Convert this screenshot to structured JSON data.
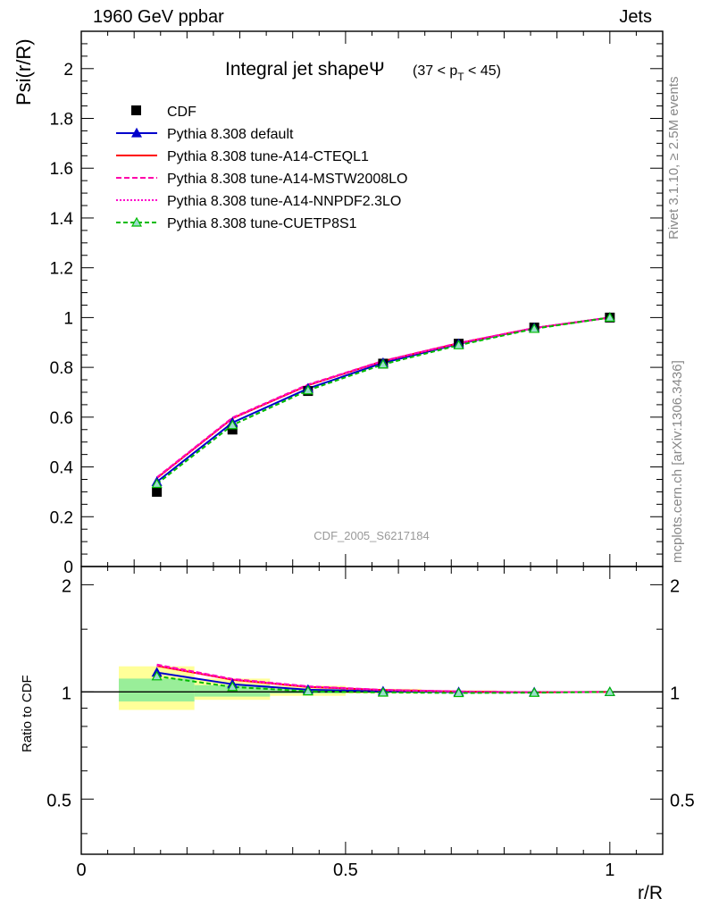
{
  "header": {
    "left": "1960 GeV ppbar",
    "right": "Jets"
  },
  "side": {
    "rivet": "Rivet 3.1.10, ≥ 2.5M events",
    "mcplots": "mcplots.cern.ch [arXiv:1306.3436]"
  },
  "chart_data": {
    "type": "line",
    "title": "Integral jet shapeΨ",
    "title_sub": "(37 < p",
    "title_sub_index": "T",
    "title_sub_tail": " < 45)",
    "analysis_id": "CDF_2005_S6217184",
    "xlabel": "r/R",
    "ylabel": "Psi(r/R)",
    "ratio_ylabel": "Ratio to CDF",
    "xlim": [
      0,
      1.1
    ],
    "ylim": [
      0,
      2.15
    ],
    "ratio_ylim": [
      0.35,
      2.25
    ],
    "ratio_log": true,
    "x_ticks": [
      "0",
      "0.5",
      "1"
    ],
    "x_tick_values": [
      0,
      0.5,
      1
    ],
    "y_ticks": [
      "0",
      "0.2",
      "0.4",
      "0.6",
      "0.8",
      "1",
      "1.2",
      "1.4",
      "1.6",
      "1.8",
      "2"
    ],
    "y_tick_values": [
      0,
      0.2,
      0.4,
      0.6,
      0.8,
      1.0,
      1.2,
      1.4,
      1.6,
      1.8,
      2.0
    ],
    "ratio_ticks": [
      "0.5",
      "1",
      "2"
    ],
    "ratio_tick_values": [
      0.5,
      1,
      2
    ],
    "legend_position": "top-left",
    "x": [
      0.143,
      0.286,
      0.429,
      0.571,
      0.714,
      0.857,
      1.0
    ],
    "bin_edges": [
      0.071,
      0.214,
      0.357,
      0.5,
      0.643,
      0.786,
      0.929,
      1.071
    ],
    "data": {
      "name": "CDF",
      "values": [
        0.3,
        0.55,
        0.705,
        0.815,
        0.895,
        0.96,
        1.0
      ],
      "stat_band": [
        [
          0.94,
          1.09
        ],
        [
          0.97,
          1.045
        ],
        [
          0.99,
          1.02
        ],
        [
          0.995,
          1.01
        ],
        [
          0.998,
          1.005
        ],
        [
          0.999,
          1.003
        ],
        [
          1.0,
          1.0
        ]
      ],
      "tot_band": [
        [
          0.89,
          1.18
        ],
        [
          0.95,
          1.09
        ],
        [
          0.975,
          1.04
        ],
        [
          0.99,
          1.02
        ],
        [
          0.995,
          1.01
        ],
        [
          0.998,
          1.005
        ],
        [
          1.0,
          1.0
        ]
      ]
    },
    "series": [
      {
        "name": "Pythia 8.308 default",
        "color": "#0000cc",
        "dash": "",
        "marker": "triangle-filled",
        "values": [
          0.34,
          0.578,
          0.715,
          0.818,
          0.894,
          0.958,
          1.0
        ]
      },
      {
        "name": "Pythia 8.308 tune-A14-CTEQL1",
        "color": "#ff0000",
        "dash": "",
        "marker": "none",
        "values": [
          0.355,
          0.595,
          0.728,
          0.825,
          0.897,
          0.958,
          1.0
        ]
      },
      {
        "name": "Pythia 8.308 tune-A14-MSTW2008LO",
        "color": "#ff00aa",
        "dash": "6,3",
        "marker": "none",
        "values": [
          0.358,
          0.598,
          0.731,
          0.826,
          0.898,
          0.958,
          1.0
        ]
      },
      {
        "name": "Pythia 8.308 tune-A14-NNPDF2.3LO",
        "color": "#ff00cc",
        "dash": "2,2",
        "marker": "none",
        "values": [
          0.356,
          0.596,
          0.729,
          0.825,
          0.897,
          0.958,
          1.0
        ]
      },
      {
        "name": "Pythia 8.308 tune-CUETP8S1",
        "color": "#00bb00",
        "dash": "5,3",
        "marker": "triangle-open",
        "values": [
          0.332,
          0.568,
          0.708,
          0.812,
          0.889,
          0.955,
          1.0
        ]
      }
    ]
  }
}
